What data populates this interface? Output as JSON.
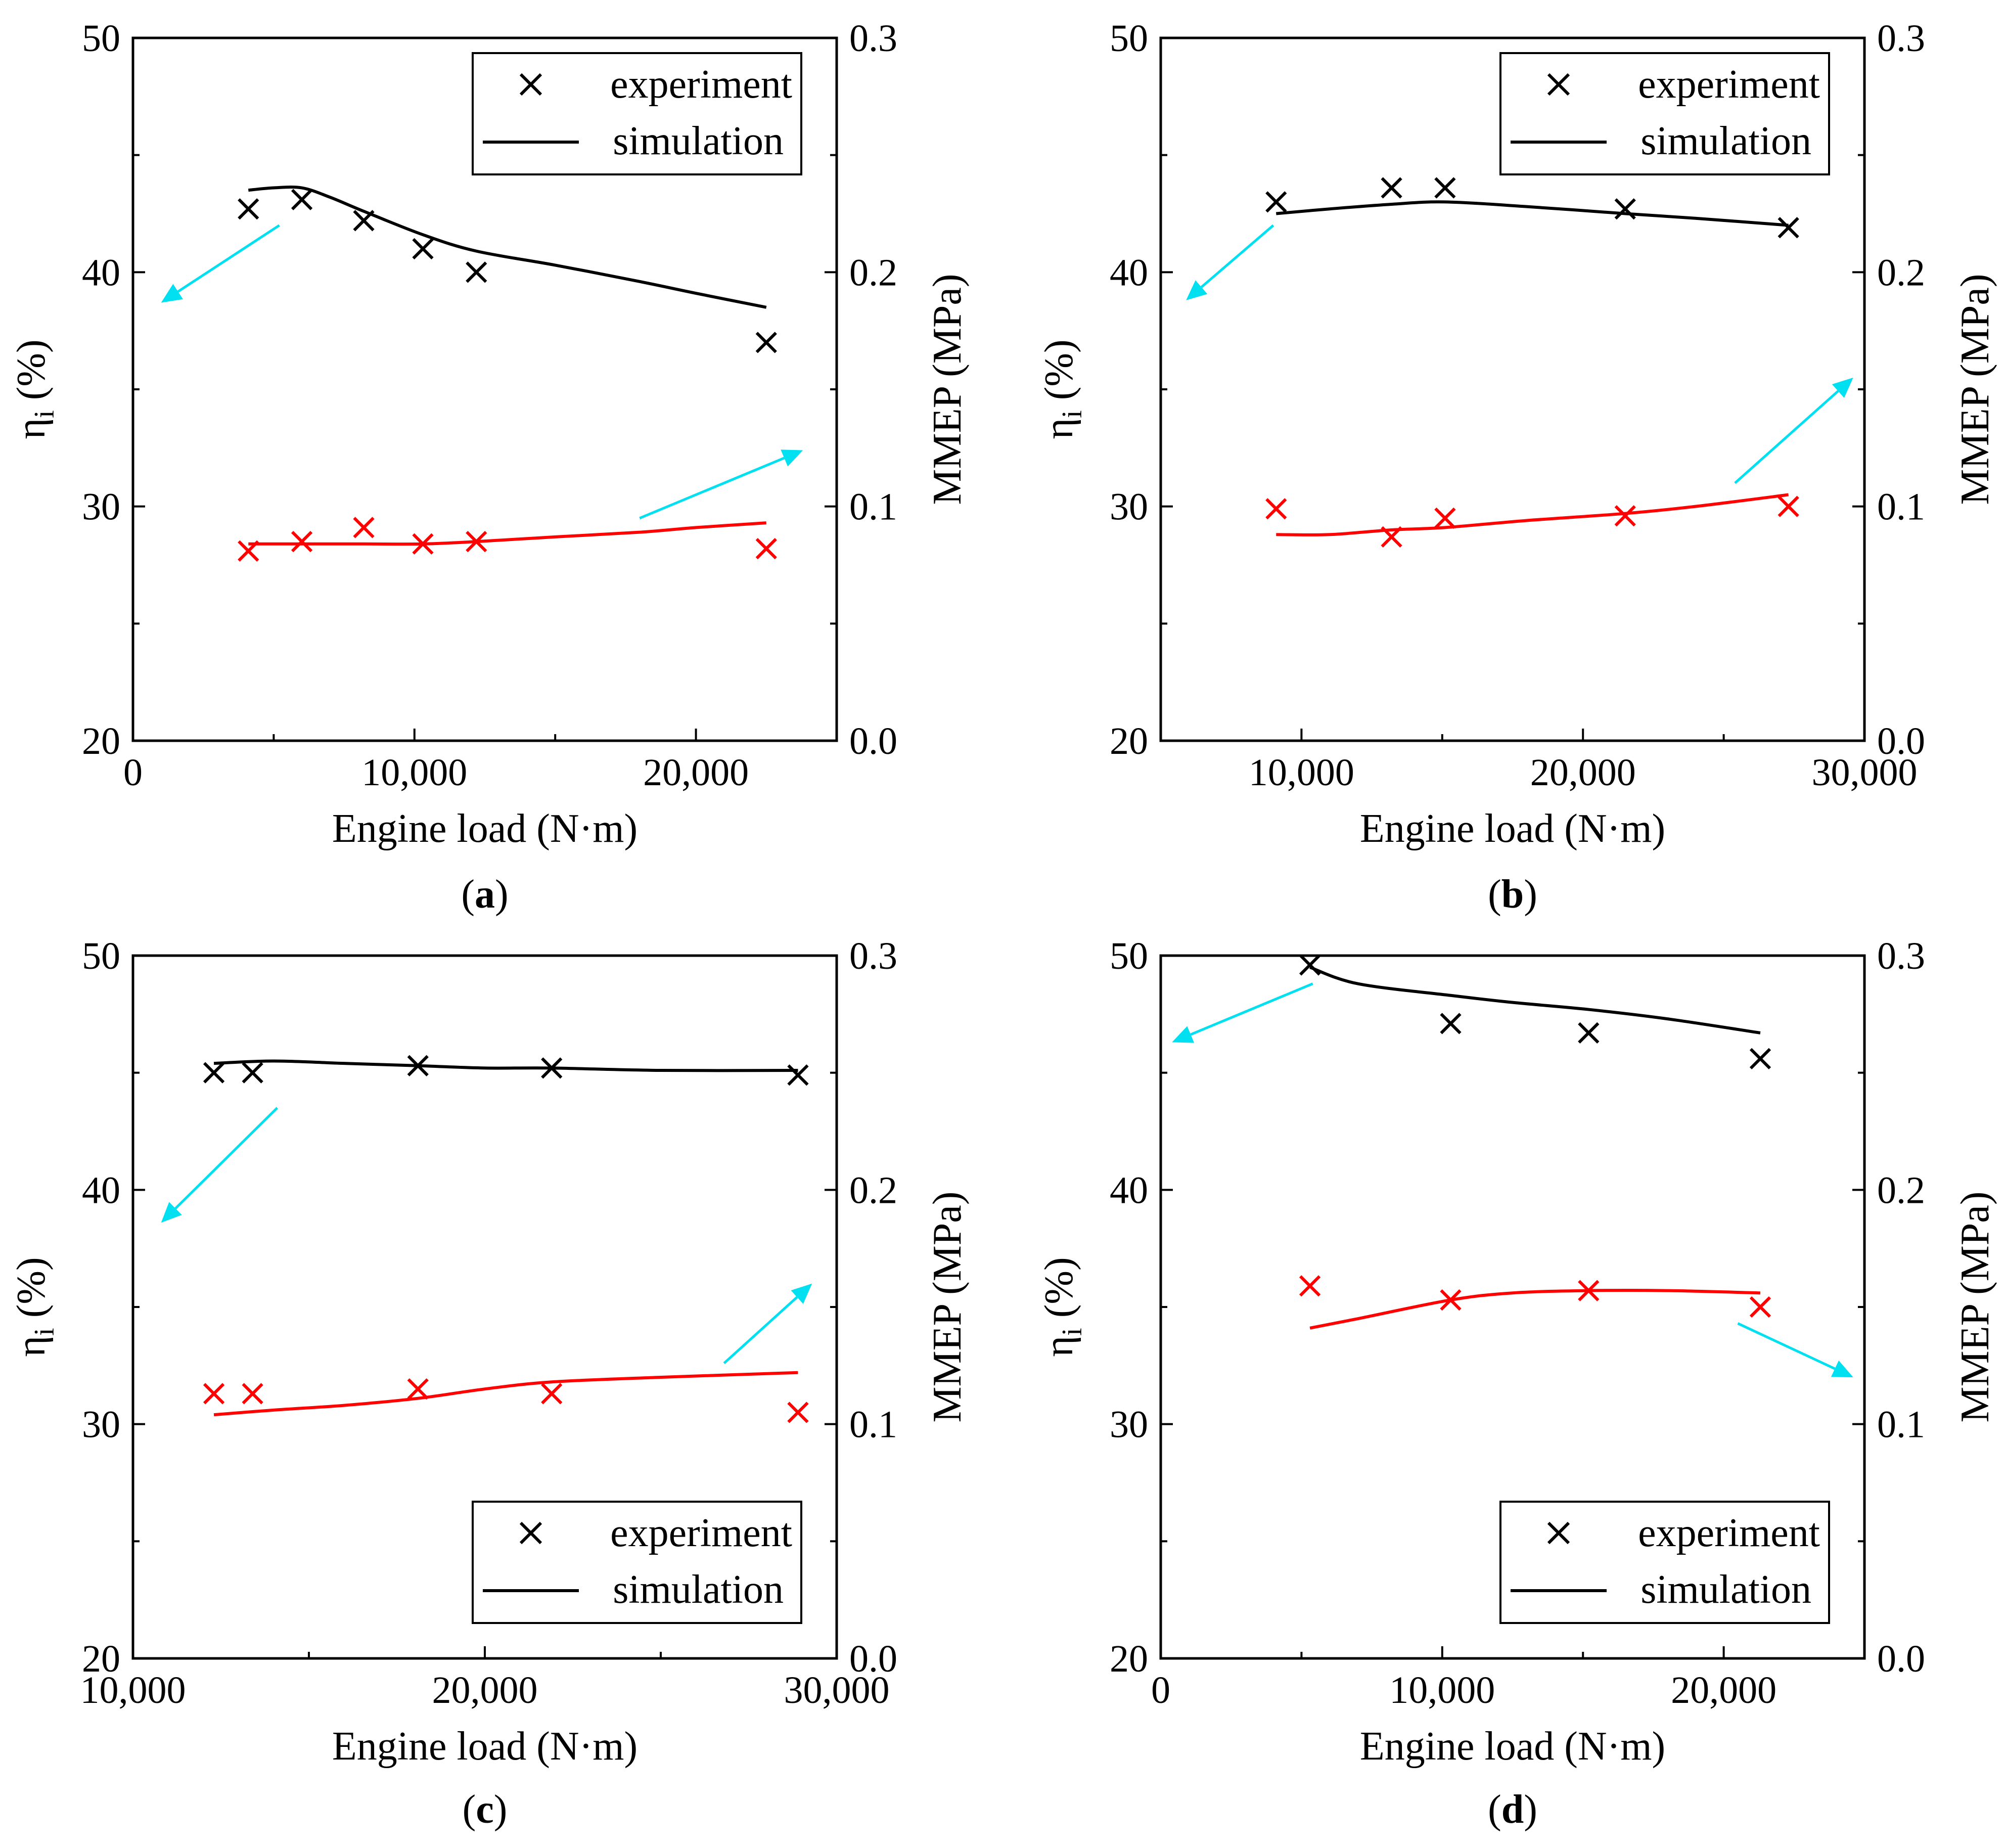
{
  "chart_data": [
    {
      "type": "line",
      "panel_label": "(a)",
      "panel_letter": "a",
      "xlabel": "Engine load (N·m)",
      "ylabel_left_main": "η",
      "ylabel_left_sub": "i",
      "ylabel_left_suffix": "(%)",
      "ylabel_right": "MMEP (MPa)",
      "xlim": [
        0,
        25000
      ],
      "ylim_left": [
        20,
        50
      ],
      "ylim_right": [
        0.0,
        0.3
      ],
      "xticks": [
        0,
        10000,
        20000
      ],
      "xtick_labels": [
        "0",
        "10,000",
        "20,000"
      ],
      "yticks_left": [
        20,
        30,
        40,
        50
      ],
      "yticks_left_labels": [
        "20",
        "30",
        "40",
        "50"
      ],
      "yticks_right": [
        0.0,
        0.1,
        0.2,
        0.3
      ],
      "yticks_right_labels": [
        "0.0",
        "0.1",
        "0.2",
        "0.3"
      ],
      "legend": {
        "position": "top-right",
        "experiment": "experiment",
        "simulation": "simulation"
      },
      "series": [
        {
          "name": "η_i experiment",
          "color": "#000000",
          "axis": "left",
          "kind": "marker",
          "x": [
            4100,
            6000,
            8200,
            10300,
            12200,
            22500
          ],
          "y": [
            42.7,
            43.1,
            42.2,
            41.0,
            40.0,
            37.0
          ]
        },
        {
          "name": "η_i simulation",
          "color": "#000000",
          "axis": "left",
          "kind": "line",
          "x": [
            4100,
            5000,
            6000,
            7000,
            8200,
            10300,
            12200,
            15000,
            18000,
            20000,
            22500
          ],
          "y": [
            43.5,
            43.6,
            43.6,
            43.2,
            42.6,
            41.6,
            40.9,
            40.3,
            39.6,
            39.1,
            38.5
          ]
        },
        {
          "name": "MMEP experiment",
          "color": "#ff0000",
          "axis": "right",
          "kind": "marker",
          "x": [
            4100,
            6000,
            8200,
            10300,
            12200,
            22500
          ],
          "y": [
            0.081,
            0.085,
            0.091,
            0.084,
            0.085,
            0.082
          ]
        },
        {
          "name": "MMEP simulation",
          "color": "#ff0000",
          "axis": "right",
          "kind": "line",
          "x": [
            4100,
            6000,
            8200,
            10300,
            12200,
            15000,
            18000,
            20000,
            22500
          ],
          "y": [
            0.084,
            0.084,
            0.084,
            0.084,
            0.085,
            0.087,
            0.089,
            0.091,
            0.093
          ]
        }
      ],
      "arrows": [
        {
          "color": "#00e0f0",
          "from": [
            5200,
            42.0
          ],
          "to": [
            1000,
            38.7
          ]
        },
        {
          "color": "#00e0f0",
          "from": [
            18000,
            29.5
          ],
          "to": [
            23800,
            32.4
          ]
        }
      ]
    },
    {
      "type": "line",
      "panel_label": "(b)",
      "panel_letter": "b",
      "xlabel": "Engine load (N·m)",
      "ylabel_left_main": "η",
      "ylabel_left_sub": "i",
      "ylabel_left_suffix": "(%)",
      "ylabel_right": "MMEP (MPa)",
      "xlim": [
        5000,
        30000
      ],
      "ylim_left": [
        20,
        50
      ],
      "ylim_right": [
        0.0,
        0.3
      ],
      "xticks": [
        10000,
        20000,
        30000
      ],
      "xtick_labels": [
        "10,000",
        "20,000",
        "30,000"
      ],
      "yticks_left": [
        20,
        30,
        40,
        50
      ],
      "yticks_left_labels": [
        "20",
        "30",
        "40",
        "50"
      ],
      "yticks_right": [
        0.0,
        0.1,
        0.2,
        0.3
      ],
      "yticks_right_labels": [
        "0.0",
        "0.1",
        "0.2",
        "0.3"
      ],
      "legend": {
        "position": "top-right",
        "experiment": "experiment",
        "simulation": "simulation"
      },
      "series": [
        {
          "name": "η_i experiment",
          "color": "#000000",
          "axis": "left",
          "kind": "marker",
          "x": [
            9100,
            13200,
            15100,
            21500,
            27300
          ],
          "y": [
            43.0,
            43.6,
            43.6,
            42.7,
            41.9
          ]
        },
        {
          "name": "η_i simulation",
          "color": "#000000",
          "axis": "left",
          "kind": "line",
          "x": [
            9100,
            11000,
            13200,
            15100,
            18000,
            21500,
            24000,
            27300
          ],
          "y": [
            42.5,
            42.7,
            42.9,
            43.0,
            42.8,
            42.5,
            42.3,
            42.0
          ]
        },
        {
          "name": "MMEP experiment",
          "color": "#ff0000",
          "axis": "right",
          "kind": "marker",
          "x": [
            9100,
            13200,
            15100,
            21500,
            27300
          ],
          "y": [
            0.099,
            0.087,
            0.095,
            0.096,
            0.1
          ]
        },
        {
          "name": "MMEP simulation",
          "color": "#ff0000",
          "axis": "right",
          "kind": "line",
          "x": [
            9100,
            11000,
            13200,
            15100,
            18000,
            21500,
            24000,
            27300
          ],
          "y": [
            0.088,
            0.088,
            0.09,
            0.091,
            0.094,
            0.097,
            0.1,
            0.105
          ]
        }
      ],
      "arrows": [
        {
          "color": "#00e0f0",
          "from": [
            9000,
            42.0
          ],
          "to": [
            5900,
            38.8
          ]
        },
        {
          "color": "#00e0f0",
          "from": [
            25400,
            31.0
          ],
          "to": [
            29600,
            35.5
          ]
        }
      ]
    },
    {
      "type": "line",
      "panel_label": "(c)",
      "panel_letter": "c",
      "xlabel": "Engine load (N·m)",
      "ylabel_left_main": "η",
      "ylabel_left_sub": "i",
      "ylabel_left_suffix": "(%)",
      "ylabel_right": "MMEP (MPa)",
      "xlim": [
        10000,
        30000
      ],
      "ylim_left": [
        20,
        50
      ],
      "ylim_right": [
        0.0,
        0.3
      ],
      "xticks": [
        10000,
        20000,
        30000
      ],
      "xtick_labels": [
        "10,000",
        "20,000",
        "30,000"
      ],
      "yticks_left": [
        20,
        30,
        40,
        50
      ],
      "yticks_left_labels": [
        "20",
        "30",
        "40",
        "50"
      ],
      "yticks_right": [
        0.0,
        0.1,
        0.2,
        0.3
      ],
      "yticks_right_labels": [
        "0.0",
        "0.1",
        "0.2",
        "0.3"
      ],
      "legend": {
        "position": "bottom-right",
        "experiment": "experiment",
        "simulation": "simulation"
      },
      "series": [
        {
          "name": "η_i experiment",
          "color": "#000000",
          "axis": "left",
          "kind": "marker",
          "x": [
            12300,
            13400,
            18100,
            21900,
            28900
          ],
          "y": [
            45.0,
            45.0,
            45.3,
            45.2,
            44.9
          ]
        },
        {
          "name": "η_i simulation",
          "color": "#000000",
          "axis": "left",
          "kind": "line",
          "x": [
            12300,
            14000,
            16000,
            18100,
            20000,
            21900,
            25000,
            28900
          ],
          "y": [
            45.4,
            45.5,
            45.4,
            45.3,
            45.2,
            45.2,
            45.1,
            45.1
          ]
        },
        {
          "name": "MMEP experiment",
          "color": "#ff0000",
          "axis": "right",
          "kind": "marker",
          "x": [
            12300,
            13400,
            18100,
            21900,
            28900
          ],
          "y": [
            0.113,
            0.113,
            0.115,
            0.113,
            0.105
          ]
        },
        {
          "name": "MMEP simulation",
          "color": "#ff0000",
          "axis": "right",
          "kind": "line",
          "x": [
            12300,
            14000,
            16000,
            18100,
            20000,
            21900,
            25000,
            28900
          ],
          "y": [
            0.104,
            0.106,
            0.108,
            0.111,
            0.115,
            0.118,
            0.12,
            0.122
          ]
        }
      ],
      "arrows": [
        {
          "color": "#00e0f0",
          "from": [
            14100,
            43.5
          ],
          "to": [
            10800,
            38.6
          ]
        },
        {
          "color": "#00e0f0",
          "from": [
            26800,
            32.6
          ],
          "to": [
            29300,
            36.0
          ]
        }
      ]
    },
    {
      "type": "line",
      "panel_label": "(d)",
      "panel_letter": "d",
      "xlabel": "Engine load (N·m)",
      "ylabel_left_main": "η",
      "ylabel_left_sub": "i",
      "ylabel_left_suffix": "(%)",
      "ylabel_right": "MMEP (MPa)",
      "xlim": [
        0,
        25000
      ],
      "ylim_left": [
        20,
        50
      ],
      "ylim_right": [
        0.0,
        0.3
      ],
      "xticks": [
        0,
        10000,
        20000
      ],
      "xtick_labels": [
        "0",
        "10,000",
        "20,000"
      ],
      "yticks_left": [
        20,
        30,
        40,
        50
      ],
      "yticks_left_labels": [
        "20",
        "30",
        "40",
        "50"
      ],
      "yticks_right": [
        0.0,
        0.1,
        0.2,
        0.3
      ],
      "yticks_right_labels": [
        "0.0",
        "0.1",
        "0.2",
        "0.3"
      ],
      "legend": {
        "position": "bottom-right",
        "experiment": "experiment",
        "simulation": "simulation"
      },
      "series": [
        {
          "name": "η_i experiment",
          "color": "#000000",
          "axis": "left",
          "kind": "marker",
          "x": [
            5300,
            10300,
            15200,
            21300
          ],
          "y": [
            49.6,
            47.1,
            46.7,
            45.6
          ]
        },
        {
          "name": "η_i simulation",
          "color": "#000000",
          "axis": "left",
          "kind": "line",
          "x": [
            5300,
            7000,
            10300,
            12500,
            15200,
            18000,
            21300
          ],
          "y": [
            49.5,
            48.8,
            48.3,
            48.0,
            47.7,
            47.3,
            46.7
          ]
        },
        {
          "name": "MMEP experiment",
          "color": "#ff0000",
          "axis": "right",
          "kind": "marker",
          "x": [
            5300,
            10300,
            15200,
            21300
          ],
          "y": [
            0.159,
            0.153,
            0.157,
            0.15
          ]
        },
        {
          "name": "MMEP simulation",
          "color": "#ff0000",
          "axis": "right",
          "kind": "line",
          "x": [
            5300,
            7000,
            10300,
            12500,
            15200,
            18000,
            21300
          ],
          "y": [
            0.141,
            0.145,
            0.153,
            0.156,
            0.157,
            0.157,
            0.156
          ]
        }
      ],
      "arrows": [
        {
          "color": "#00e0f0",
          "from": [
            5400,
            48.8
          ],
          "to": [
            400,
            46.3
          ]
        },
        {
          "color": "#00e0f0",
          "from": [
            20500,
            34.3
          ],
          "to": [
            24600,
            32.0
          ]
        }
      ]
    }
  ]
}
